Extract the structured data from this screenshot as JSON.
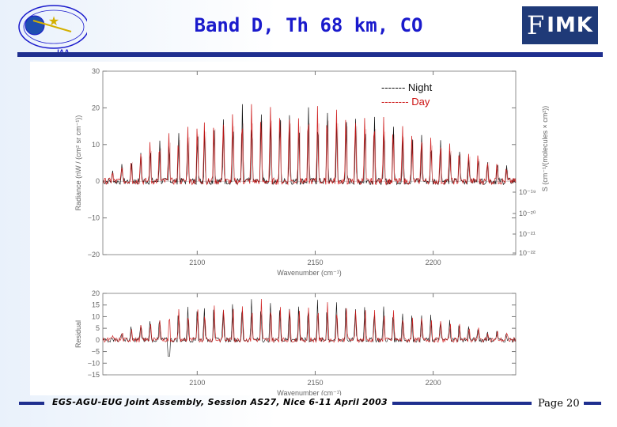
{
  "header": {
    "title": "Band D, Th 68 km, CO",
    "logo_left_text": "IAA",
    "logo_right_text": "IMK",
    "logo_right_letter": "F"
  },
  "footer": {
    "text": "EGS-AGU-EUG Joint Assembly, Session AS27, Nice 6-11 April 2003",
    "page": "Page 20"
  },
  "colors": {
    "title": "#1a1acc",
    "night": "#111111",
    "day": "#cc1111",
    "rule": "#1f2f8f"
  },
  "chart_data": [
    {
      "type": "line",
      "name": "radiance",
      "xlabel": "Wavenumber (cm⁻¹)",
      "ylabel": "Radiance (nW / (cm² sr cm⁻¹))",
      "y2label": "S (cm⁻¹/(molecules × cm²))",
      "xlim": [
        2060,
        2235
      ],
      "ylim": [
        -20,
        30
      ],
      "xticks": [
        2100,
        2150,
        2200
      ],
      "yticks": [
        -20,
        -10,
        0,
        10,
        20,
        30
      ],
      "y2ticks": [
        "10⁻¹⁹",
        "10⁻²⁰",
        "10⁻²¹",
        "10⁻²²"
      ],
      "legend": {
        "placement": "top-right",
        "entries": [
          "------- Night",
          "-------- Day"
        ]
      },
      "series": [
        {
          "name": "Night",
          "color": "#111111",
          "note": "CO emission lines, peaks up to ~22"
        },
        {
          "name": "Day",
          "color": "#cc1111",
          "note": "CO emission lines, peaks up to ~22"
        }
      ],
      "line_centers": [
        2064,
        2068,
        2072,
        2076,
        2080,
        2084,
        2088,
        2092,
        2096,
        2100,
        2103,
        2107,
        2111,
        2115,
        2119,
        2123,
        2127,
        2131,
        2135,
        2139,
        2143,
        2147,
        2151,
        2155,
        2159,
        2163,
        2167,
        2171,
        2175,
        2179,
        2183,
        2187,
        2191,
        2195,
        2199,
        2203,
        2207,
        2211,
        2215,
        2219,
        2223,
        2227,
        2231
      ],
      "line_peaks": [
        3,
        5,
        7,
        9,
        11,
        12,
        14,
        15,
        16,
        17,
        18,
        19,
        20,
        20,
        21,
        21,
        22,
        22,
        22,
        21,
        20,
        21,
        21,
        22,
        21,
        20,
        20,
        19,
        19,
        18,
        17,
        16,
        15,
        14,
        13,
        12,
        11,
        10,
        9,
        8,
        7,
        6,
        4
      ]
    },
    {
      "type": "line",
      "name": "residuals",
      "xlabel": "Wavenumber (cm⁻¹)",
      "ylabel": "Residual",
      "xlim": [
        2060,
        2235
      ],
      "ylim": [
        -15,
        20
      ],
      "xticks": [
        2100,
        2150,
        2200
      ],
      "yticks": [
        -15,
        -10,
        -5,
        0,
        5,
        10,
        15,
        20
      ],
      "residual_spikes": [
        2,
        4,
        6,
        8,
        10,
        11,
        13,
        14,
        15,
        16,
        16,
        17,
        17,
        18,
        18,
        18,
        18,
        18,
        17,
        17,
        16,
        17,
        18,
        18,
        17,
        17,
        16,
        16,
        15,
        15,
        14,
        13,
        12,
        12,
        11,
        10,
        9,
        8,
        7,
        6,
        5,
        4,
        3
      ]
    }
  ]
}
